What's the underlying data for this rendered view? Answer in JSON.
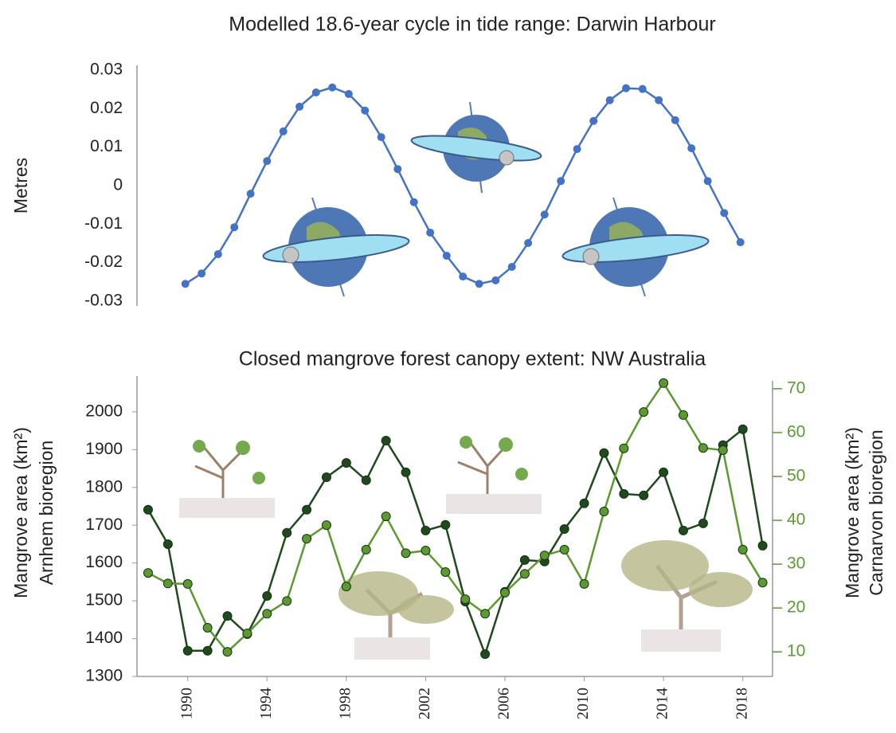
{
  "chart_data": [
    {
      "type": "line",
      "title": "Modelled 18.6-year cycle in tide range: Darwin Harbour",
      "ylabel": [
        "Metres"
      ],
      "x": [
        1989.88,
        1990.7,
        1991.53,
        1992.35,
        1993.17,
        1994.0,
        1994.82,
        1995.64,
        1996.47,
        1997.29,
        1998.12,
        1998.94,
        1999.76,
        2000.59,
        2001.41,
        2002.23,
        2003.06,
        2003.88,
        2004.7,
        2005.53,
        2006.35,
        2007.17,
        2008.0,
        2008.82,
        2009.64,
        2010.47,
        2011.29,
        2012.11,
        2012.94,
        2013.76,
        2014.59,
        2015.41,
        2016.23,
        2017.06,
        2017.88
      ],
      "values": [
        -0.0255,
        -0.0228,
        -0.0178,
        -0.0108,
        -0.0021,
        0.0064,
        0.0141,
        0.0205,
        0.0242,
        0.0255,
        0.0238,
        0.0195,
        0.0126,
        0.0043,
        -0.0043,
        -0.0122,
        -0.0182,
        -0.0236,
        -0.0255,
        -0.0246,
        -0.0211,
        -0.0149,
        -0.0075,
        0.0012,
        0.0095,
        0.0168,
        0.0222,
        0.0253,
        0.0251,
        0.0222,
        0.017,
        0.0097,
        0.0012,
        -0.0071,
        -0.0147
      ],
      "color": "#4472c4",
      "xlim": [
        1987.6,
        2019.5
      ],
      "ylim": [
        -0.03,
        0.03
      ],
      "yticks": [
        0.03,
        0.02,
        0.01,
        0,
        -0.01,
        -0.02,
        -0.03
      ]
    },
    {
      "type": "line",
      "title": "Closed mangrove forest  canopy extent: NW Australia",
      "ylabel": [
        "Mangrove area (km²)",
        "Arnhem bioregion"
      ],
      "y2label": [
        "Mangrove area (km²)",
        "Carnarvon bioregion"
      ],
      "x": [
        1988,
        1989,
        1990,
        1991,
        1992,
        1993,
        1994,
        1995,
        1996,
        1997,
        1998,
        1999,
        2000,
        2001,
        2002,
        2003,
        2004,
        2005,
        2006,
        2007,
        2008,
        2009,
        2010,
        2011,
        2012,
        2013,
        2014,
        2015,
        2016,
        2017,
        2018,
        2019
      ],
      "series": [
        {
          "color": "#1f4a1c",
          "values": [
            1741,
            1650,
            1368,
            1368,
            1460,
            1412,
            1513,
            1680,
            1741,
            1827,
            1865,
            1819,
            1924,
            1840,
            1686,
            1701,
            1498,
            1359,
            1524,
            1608,
            1604,
            1690,
            1758,
            1891,
            1783,
            1779,
            1840,
            1686,
            1705,
            1912,
            1954,
            1646
          ]
        },
        {
          "color": "#5b9a2f",
          "axis": "y2",
          "values": [
            28.0,
            25.6,
            25.5,
            15.5,
            10.0,
            14.2,
            18.7,
            21.6,
            35.8,
            38.9,
            24.9,
            33.3,
            40.9,
            32.5,
            33.1,
            28.2,
            22.0,
            18.7,
            23.5,
            27.8,
            32.0,
            33.3,
            25.5,
            42.0,
            56.4,
            64.7,
            71.3,
            64.0,
            56.5,
            56.0,
            33.3,
            25.8
          ]
        }
      ],
      "xlim": [
        1987.6,
        2019.5
      ],
      "xticks": [
        1990,
        1994,
        1998,
        2002,
        2006,
        2010,
        2014,
        2018
      ],
      "ylim": [
        1300,
        2082
      ],
      "yticks": [
        1300,
        1400,
        1500,
        1600,
        1700,
        1800,
        1900,
        2000
      ],
      "y2lim": [
        4.4,
        71.8
      ],
      "y2ticks": [
        10,
        20,
        30,
        40,
        50,
        60,
        70
      ]
    }
  ]
}
